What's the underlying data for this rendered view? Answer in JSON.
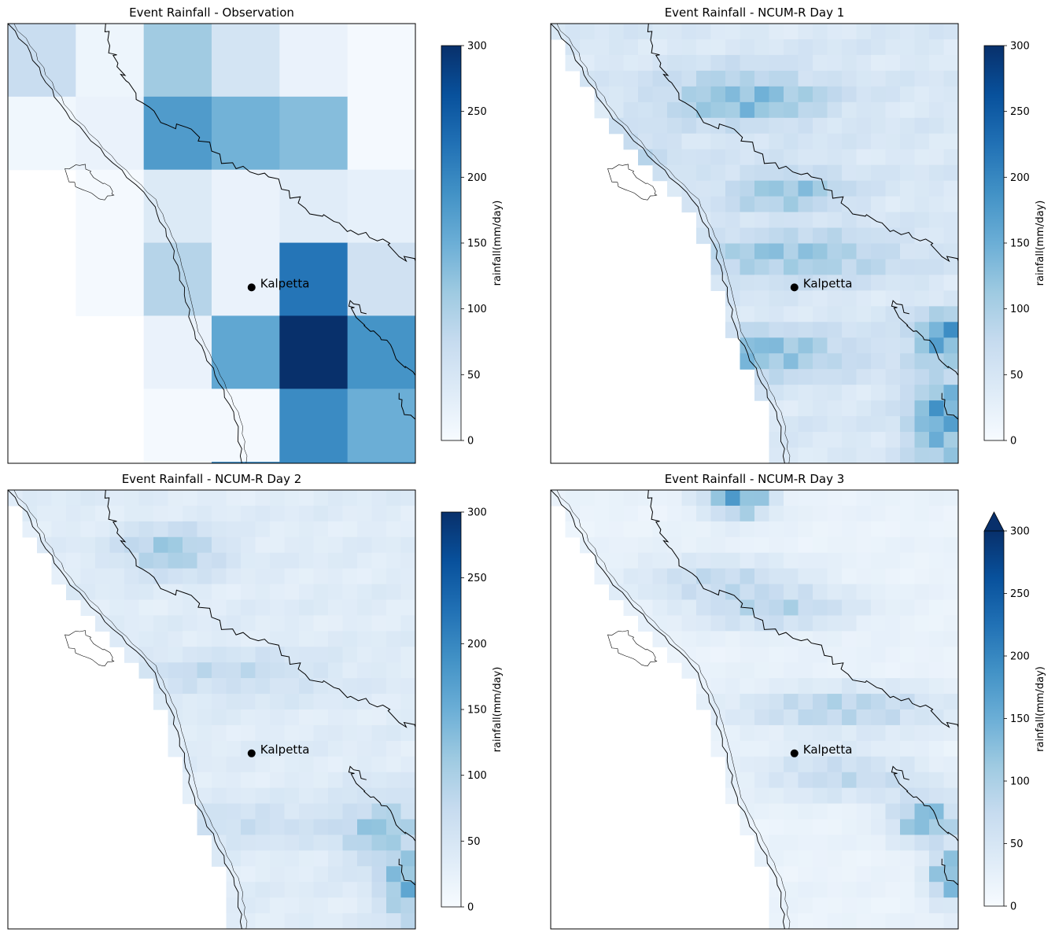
{
  "figure": {
    "background": "#ffffff",
    "colormap": "Blues",
    "colormap_stops": [
      "#f7fbff",
      "#deebf7",
      "#c6dbef",
      "#9ecae1",
      "#6baed6",
      "#4292c6",
      "#2171b5",
      "#08519c",
      "#08306b"
    ],
    "marker_label": "Kalpetta",
    "colorbar_label": "rainfall(mm/day)",
    "colorbar_ticks": [
      "0",
      "50",
      "100",
      "150",
      "200",
      "250",
      "300"
    ]
  },
  "chart_data": [
    {
      "type": "heatmap",
      "title": "Event Rainfall - Observation",
      "vmin": 0,
      "vmax": 300,
      "colorbar": {
        "label": "rainfall(mm/day)",
        "ticks": [
          0,
          50,
          100,
          150,
          200,
          250,
          300
        ],
        "extend": "neither"
      },
      "land_mask": "coastline",
      "grid_shape": [
        6,
        6
      ],
      "values": [
        [
          70,
          15,
          110,
          55,
          20,
          5
        ],
        [
          10,
          20,
          175,
          145,
          130,
          5
        ],
        [
          null,
          5,
          40,
          20,
          35,
          25
        ],
        [
          null,
          5,
          90,
          20,
          220,
          60
        ],
        [
          null,
          null,
          20,
          160,
          300,
          185
        ],
        [
          null,
          null,
          5,
          5,
          195,
          150
        ]
      ],
      "extra_row": [
        null,
        null,
        null,
        205,
        200,
        185
      ],
      "annotations": [
        {
          "text": "Kalpetta"
        }
      ]
    },
    {
      "type": "heatmap",
      "title": "Event Rainfall - NCUM-R Day 1",
      "vmin": 0,
      "vmax": 300,
      "colorbar": {
        "label": "rainfall(mm/day)",
        "ticks": [
          0,
          50,
          100,
          150,
          200,
          250,
          300
        ],
        "extend": "neither"
      },
      "land_mask": "coastline",
      "grid_shape": [
        28,
        28
      ],
      "pattern": {
        "base": 45,
        "bands": [
          {
            "row": 0.17,
            "col": 0.48,
            "amp": 110,
            "sr": 0.06,
            "sc": 0.2
          },
          {
            "row": 0.38,
            "col": 0.58,
            "amp": 90,
            "sr": 0.05,
            "sc": 0.15
          },
          {
            "row": 0.53,
            "col": 0.6,
            "amp": 95,
            "sr": 0.05,
            "sc": 0.25
          },
          {
            "row": 0.75,
            "col": 0.48,
            "amp": 120,
            "sr": 0.05,
            "sc": 0.25
          },
          {
            "row": 0.71,
            "col": 0.97,
            "amp": 160,
            "sr": 0.05,
            "sc": 0.08
          },
          {
            "row": 0.9,
            "col": 0.96,
            "amp": 150,
            "sr": 0.1,
            "sc": 0.08
          },
          {
            "row": 0.3,
            "col": 0.15,
            "amp": 60,
            "sr": 0.05,
            "sc": 0.15
          }
        ]
      },
      "annotations": [
        {
          "text": "Kalpetta"
        }
      ]
    },
    {
      "type": "heatmap",
      "title": "Event Rainfall - NCUM-R Day 2",
      "vmin": 0,
      "vmax": 300,
      "colorbar": {
        "label": "rainfall(mm/day)",
        "ticks": [
          0,
          50,
          100,
          150,
          200,
          250,
          300
        ],
        "extend": "neither"
      },
      "land_mask": "coastline",
      "grid_shape": [
        28,
        28
      ],
      "pattern": {
        "base": 35,
        "bands": [
          {
            "row": 0.14,
            "col": 0.4,
            "amp": 100,
            "sr": 0.05,
            "sc": 0.12
          },
          {
            "row": 0.42,
            "col": 0.55,
            "amp": 50,
            "sr": 0.05,
            "sc": 0.25
          },
          {
            "row": 0.78,
            "col": 0.92,
            "amp": 90,
            "sr": 0.08,
            "sc": 0.1
          },
          {
            "row": 0.91,
            "col": 0.98,
            "amp": 130,
            "sr": 0.07,
            "sc": 0.06
          },
          {
            "row": 0.76,
            "col": 0.6,
            "amp": 45,
            "sr": 0.04,
            "sc": 0.25
          }
        ]
      },
      "annotations": [
        {
          "text": "Kalpetta"
        }
      ]
    },
    {
      "type": "heatmap",
      "title": "Event Rainfall - NCUM-R Day 3",
      "vmin": 0,
      "vmax": 300,
      "colorbar": {
        "label": "rainfall(mm/day)",
        "ticks": [
          0,
          50,
          100,
          150,
          200,
          250,
          300
        ],
        "extend": "max"
      },
      "land_mask": "coastline",
      "grid_shape": [
        28,
        28
      ],
      "pattern": {
        "base": 20,
        "bands": [
          {
            "row": 0.02,
            "col": 0.46,
            "amp": 180,
            "sr": 0.04,
            "sc": 0.08
          },
          {
            "row": 0.2,
            "col": 0.4,
            "amp": 60,
            "sr": 0.05,
            "sc": 0.2
          },
          {
            "row": 0.27,
            "col": 0.55,
            "amp": 80,
            "sr": 0.05,
            "sc": 0.2
          },
          {
            "row": 0.5,
            "col": 0.72,
            "amp": 90,
            "sr": 0.05,
            "sc": 0.25
          },
          {
            "row": 0.65,
            "col": 0.72,
            "amp": 75,
            "sr": 0.05,
            "sc": 0.2
          },
          {
            "row": 0.75,
            "col": 0.92,
            "amp": 150,
            "sr": 0.05,
            "sc": 0.08
          },
          {
            "row": 0.88,
            "col": 0.98,
            "amp": 160,
            "sr": 0.06,
            "sc": 0.05
          }
        ]
      },
      "annotations": [
        {
          "text": "Kalpetta"
        }
      ]
    }
  ]
}
